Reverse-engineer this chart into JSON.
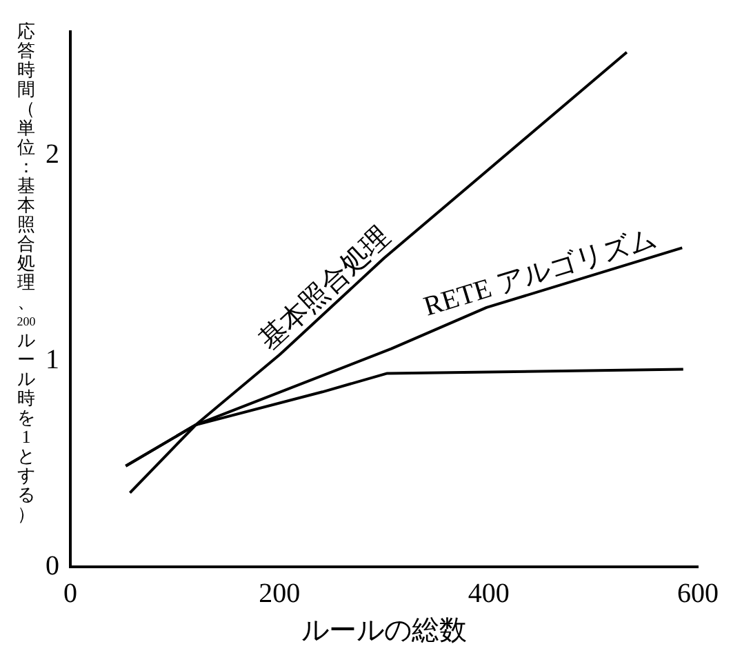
{
  "chart_data": {
    "type": "line",
    "xlabel": "ルールの総数",
    "ylabel": "応答時間（単位：基本照合処理、200ルール時を1とする）",
    "xlim": [
      0,
      600
    ],
    "xticks": [
      0,
      200,
      400,
      600
    ],
    "ylim": [
      0,
      2.6
    ],
    "yticks": [
      0,
      1,
      2
    ],
    "grid": false,
    "legend": false,
    "marker": "none",
    "line_style": "solid",
    "series": [
      {
        "name": "基本照合処理",
        "color": "#000000",
        "x": [
          57,
          120,
          200,
          300,
          532
        ],
        "values": [
          0.36,
          0.69,
          1.03,
          1.5,
          2.5
        ]
      },
      {
        "name": "RETE アルゴリズム",
        "color": "#000000",
        "x": [
          53,
          120,
          307,
          398,
          585
        ],
        "values": [
          0.49,
          0.69,
          1.06,
          1.26,
          1.55
        ]
      },
      {
        "color": "#000000",
        "x": [
          53,
          120,
          241,
          303,
          586
        ],
        "values": [
          0.49,
          0.69,
          0.85,
          0.94,
          0.96
        ]
      }
    ]
  }
}
